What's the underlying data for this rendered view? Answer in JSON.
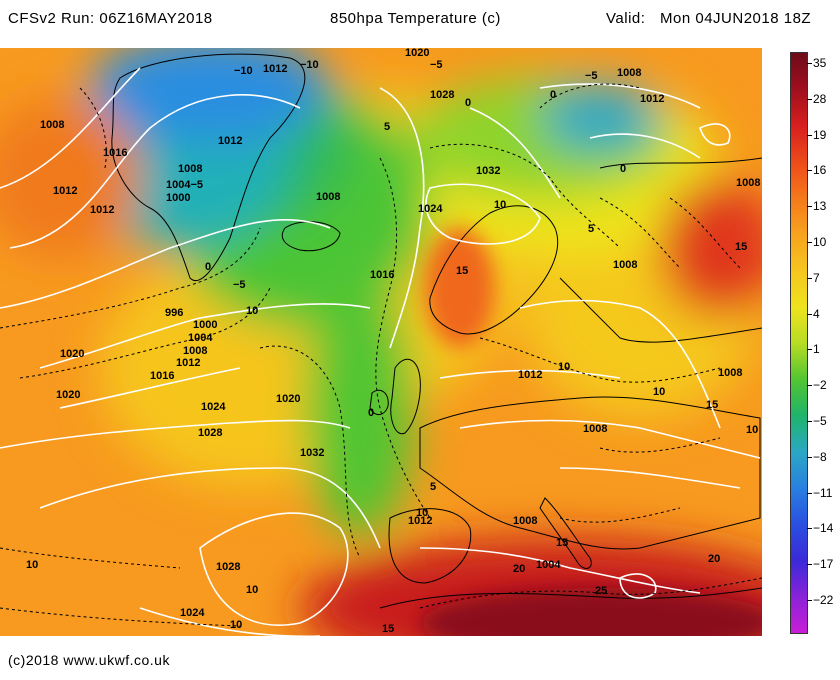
{
  "header": {
    "run": "CFSv2 Run: 06Z16MAY2018",
    "title": "850hpa Temperature (c)",
    "valid_label": "Valid:",
    "valid_value": "Mon 04JUN2018 18Z"
  },
  "footer": {
    "credit": "(c)2018 www.ukwf.co.uk"
  },
  "colorbar": {
    "ticks": [
      "35",
      "28",
      "19",
      "16",
      "13",
      "10",
      "7",
      "4",
      "1",
      "−2",
      "−5",
      "−8",
      "−11",
      "−14",
      "−17",
      "−22"
    ],
    "colors": [
      "#6e0b1a",
      "#a00f1e",
      "#d61f1f",
      "#ee4a1b",
      "#f5781b",
      "#f7a31e",
      "#f6c51f",
      "#eee31d",
      "#b8dc24",
      "#52c531",
      "#1fb46a",
      "#2aa8c4",
      "#2a7fe0",
      "#2a4fe0",
      "#3a2ad8",
      "#8a22d8",
      "#c81fd6"
    ]
  },
  "isobar_labels": [
    "1020",
    "−5",
    "−10",
    "1012",
    "−10",
    "−5",
    "1008",
    "1028",
    "0",
    "0",
    "1012",
    "1008",
    "1016",
    "1012",
    "5",
    "1008",
    "1004−5",
    "1000",
    "1032",
    "0",
    "1012",
    "1012",
    "1008",
    "10",
    "1024",
    "5",
    "0",
    "15",
    "1008",
    "−5",
    "996",
    "1000",
    "1004",
    "1008",
    "1012",
    "1016",
    "10",
    "1020",
    "1016",
    "1008",
    "1020",
    "1024",
    "1028",
    "1020",
    "0",
    "1032",
    "1012",
    "10",
    "10",
    "1008",
    "15",
    "10",
    "1008",
    "5",
    "10",
    "1012",
    "1008",
    "15",
    "20",
    "1004",
    "20",
    "25",
    "10",
    "1028",
    "10",
    "1024",
    "10",
    "15",
    "15"
  ]
}
